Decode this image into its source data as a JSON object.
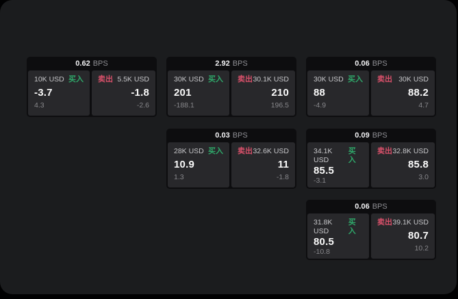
{
  "colors": {
    "page_background": "#010102",
    "surface_background": "#1b1c1e",
    "card_background": "#0d0d0f",
    "panel_background": "#28282b",
    "buy_accent": "#2fa86a",
    "sell_accent": "#d8506a"
  },
  "cards": [
    {
      "bps_value": "0.62",
      "bps_unit": "BPS",
      "buy": {
        "notional": "10K USD",
        "side_label": "买入",
        "price": "-3.7",
        "sub_value": "4.3"
      },
      "sell": {
        "notional": "5.5K USD",
        "side_label": "卖出",
        "price": "-1.8",
        "sub_value": "-2.6"
      }
    },
    {
      "bps_value": "2.92",
      "bps_unit": "BPS",
      "buy": {
        "notional": "30K USD",
        "side_label": "买入",
        "price": "201",
        "sub_value": "-188.1"
      },
      "sell": {
        "notional": "30.1K USD",
        "side_label": "卖出",
        "price": "210",
        "sub_value": "196.5"
      }
    },
    {
      "bps_value": "0.06",
      "bps_unit": "BPS",
      "buy": {
        "notional": "30K USD",
        "side_label": "买入",
        "price": "88",
        "sub_value": "-4.9"
      },
      "sell": {
        "notional": "30K USD",
        "side_label": "卖出",
        "price": "88.2",
        "sub_value": "4.7"
      }
    },
    {
      "bps_value": "0.03",
      "bps_unit": "BPS",
      "buy": {
        "notional": "28K USD",
        "side_label": "买入",
        "price": "10.9",
        "sub_value": "1.3"
      },
      "sell": {
        "notional": "32.6K USD",
        "side_label": "卖出",
        "price": "11",
        "sub_value": "-1.8"
      }
    },
    {
      "bps_value": "0.09",
      "bps_unit": "BPS",
      "buy": {
        "notional": "34.1K USD",
        "side_label": "买入",
        "price": "85.5",
        "sub_value": "-3.1"
      },
      "sell": {
        "notional": "32.8K USD",
        "side_label": "卖出",
        "price": "85.8",
        "sub_value": "3.0"
      }
    },
    {
      "bps_value": "0.06",
      "bps_unit": "BPS",
      "buy": {
        "notional": "31.8K USD",
        "side_label": "买入",
        "price": "80.5",
        "sub_value": "-10.8"
      },
      "sell": {
        "notional": "39.1K USD",
        "side_label": "卖出",
        "price": "80.7",
        "sub_value": "10.2"
      }
    }
  ]
}
